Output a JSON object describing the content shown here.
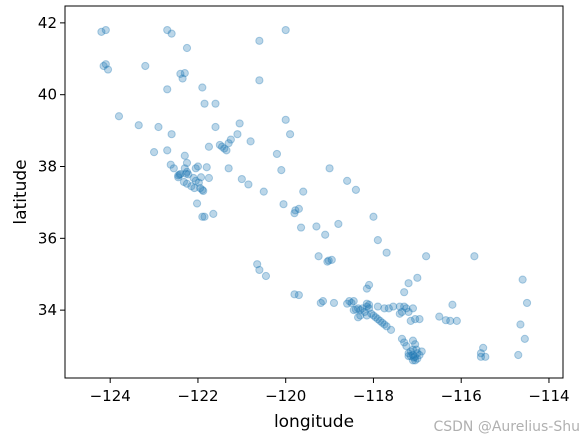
{
  "chart_data": {
    "type": "scatter",
    "xlabel": "longitude",
    "ylabel": "latitude",
    "watermark": "CSDN @Aurelius-Shu",
    "color": "#1f77b4",
    "xlim": [
      -125.03,
      -113.68
    ],
    "ylim": [
      32.11,
      42.47
    ],
    "xticks": [
      {
        "value": -124,
        "label": "−124"
      },
      {
        "value": -122,
        "label": "−122"
      },
      {
        "value": -120,
        "label": "−120"
      },
      {
        "value": -118,
        "label": "−118"
      },
      {
        "value": -116,
        "label": "−116"
      },
      {
        "value": -114,
        "label": "−114"
      }
    ],
    "yticks": [
      34,
      36,
      38,
      40,
      42
    ],
    "x": [
      -122.42,
      -122.45,
      -122.4,
      -122.27,
      -122.25,
      -122.22,
      -122.1,
      -122.05,
      -121.98,
      -121.9,
      -121.88,
      -121.95,
      -122.08,
      -122.15,
      -122.25,
      -122.32,
      -122.45,
      -122.3,
      -122.05,
      -122.0,
      -121.8,
      -122.55,
      -122.62,
      -122.7,
      -122.3,
      -122.25,
      -121.75,
      -121.93,
      -122.02,
      -121.85,
      -121.45,
      -121.5,
      -121.3,
      -121.25,
      -121.4,
      -121.35,
      -121.75,
      -121.1,
      -121.6,
      -121.85,
      -122.4,
      -122.35,
      -121.3,
      -121.0,
      -120.85,
      -120.5,
      -120.05,
      -119.78,
      -119.7,
      -119.8,
      -119.3,
      -119.65,
      -119.1,
      -119.02,
      -119.05,
      -118.95,
      -119.25,
      -120.65,
      -120.45,
      -120.6,
      -119.7,
      -119.8,
      -119.2,
      -119.15,
      -118.9,
      -121.65,
      -121.9,
      -118.25,
      -118.3,
      -118.35,
      -118.4,
      -118.45,
      -118.2,
      -118.15,
      -118.1,
      -118.05,
      -118.0,
      -117.95,
      -117.9,
      -117.85,
      -117.8,
      -117.75,
      -117.7,
      -118.15,
      -118.3,
      -118.35,
      -118.5,
      -118.55,
      -118.45,
      -118.6,
      -118.15,
      -118.1,
      -117.9,
      -117.75,
      -117.65,
      -117.55,
      -117.4,
      -117.3,
      -117.25,
      -117.35,
      -117.2,
      -117.1,
      -117.4,
      -117.15,
      -117.05,
      -116.95,
      -117.6,
      -117.15,
      -117.1,
      -117.05,
      -117.0,
      -117.1,
      -117.05,
      -117.2,
      -117.15,
      -117.1,
      -117.0,
      -116.95,
      -117.25,
      -117.3,
      -117.35,
      -117.1,
      -117.05,
      -116.9,
      -117.02,
      -117.2,
      -117.08,
      -116.5,
      -116.35,
      -116.25,
      -116.1,
      -115.55,
      -115.5,
      -115.45,
      -115.55,
      -114.6,
      -114.5,
      -114.65,
      -114.55,
      -114.7,
      -116.2,
      -117.3,
      -117.2,
      -118.15,
      -118.1,
      -117.0,
      -116.8,
      -115.7,
      -117.7,
      -124.15,
      -124.1,
      -124.05,
      -124.2,
      -124.1,
      -123.8,
      -123.35,
      -122.3,
      -122.25,
      -122.6,
      -122.7,
      -122.7,
      -121.6,
      -121.9,
      -120.6,
      -120.6,
      -120.0,
      -119.9,
      -120.2,
      -120.8,
      -121.05,
      -120.0,
      -123.2,
      -122.6,
      -123.0,
      -122.9,
      -118.4,
      -118.6,
      -119.0,
      -118.0,
      -117.9,
      -118.8,
      -119.6,
      -120.1
    ],
    "values": [
      37.77,
      37.75,
      37.79,
      37.8,
      37.85,
      37.78,
      37.68,
      37.6,
      37.55,
      37.35,
      37.32,
      37.4,
      37.4,
      37.45,
      37.52,
      37.57,
      37.7,
      37.95,
      37.95,
      38.0,
      37.98,
      37.95,
      38.05,
      38.45,
      38.3,
      38.1,
      37.68,
      37.7,
      36.97,
      36.6,
      38.55,
      38.6,
      38.65,
      38.75,
      38.5,
      38.45,
      38.55,
      38.9,
      39.1,
      39.75,
      40.58,
      40.45,
      37.95,
      37.65,
      37.5,
      37.3,
      36.95,
      36.78,
      36.82,
      36.7,
      36.33,
      36.3,
      36.1,
      35.38,
      35.35,
      35.4,
      35.5,
      35.28,
      34.95,
      35.12,
      34.42,
      34.44,
      34.2,
      34.25,
      34.2,
      36.68,
      36.6,
      34.05,
      34.0,
      34.05,
      34.02,
      34.0,
      33.95,
      34.1,
      34.05,
      33.9,
      33.85,
      33.8,
      33.75,
      33.7,
      33.65,
      33.6,
      33.55,
      33.85,
      33.85,
      33.8,
      34.2,
      34.25,
      34.25,
      34.18,
      34.18,
      34.15,
      34.1,
      34.05,
      34.05,
      34.1,
      34.1,
      34.1,
      34.05,
      33.95,
      33.95,
      34.05,
      33.9,
      33.7,
      33.75,
      33.75,
      33.45,
      32.72,
      32.75,
      32.7,
      32.65,
      32.6,
      32.6,
      32.8,
      32.85,
      32.9,
      32.8,
      32.75,
      33.0,
      33.1,
      33.2,
      33.15,
      33.05,
      32.85,
      32.9,
      32.72,
      32.68,
      33.82,
      33.72,
      33.7,
      33.7,
      32.8,
      32.95,
      32.7,
      32.7,
      34.85,
      34.2,
      33.6,
      33.2,
      32.75,
      34.15,
      34.5,
      34.75,
      34.6,
      34.7,
      34.9,
      35.5,
      35.5,
      35.6,
      40.8,
      40.85,
      40.7,
      41.75,
      41.8,
      39.4,
      39.15,
      40.6,
      41.3,
      41.7,
      41.8,
      40.15,
      39.75,
      40.2,
      41.5,
      40.4,
      39.3,
      38.9,
      38.35,
      38.7,
      39.2,
      41.8,
      40.8,
      38.9,
      38.4,
      39.1,
      37.35,
      37.6,
      37.95,
      36.6,
      35.95,
      36.4,
      37.3,
      37.9
    ]
  }
}
